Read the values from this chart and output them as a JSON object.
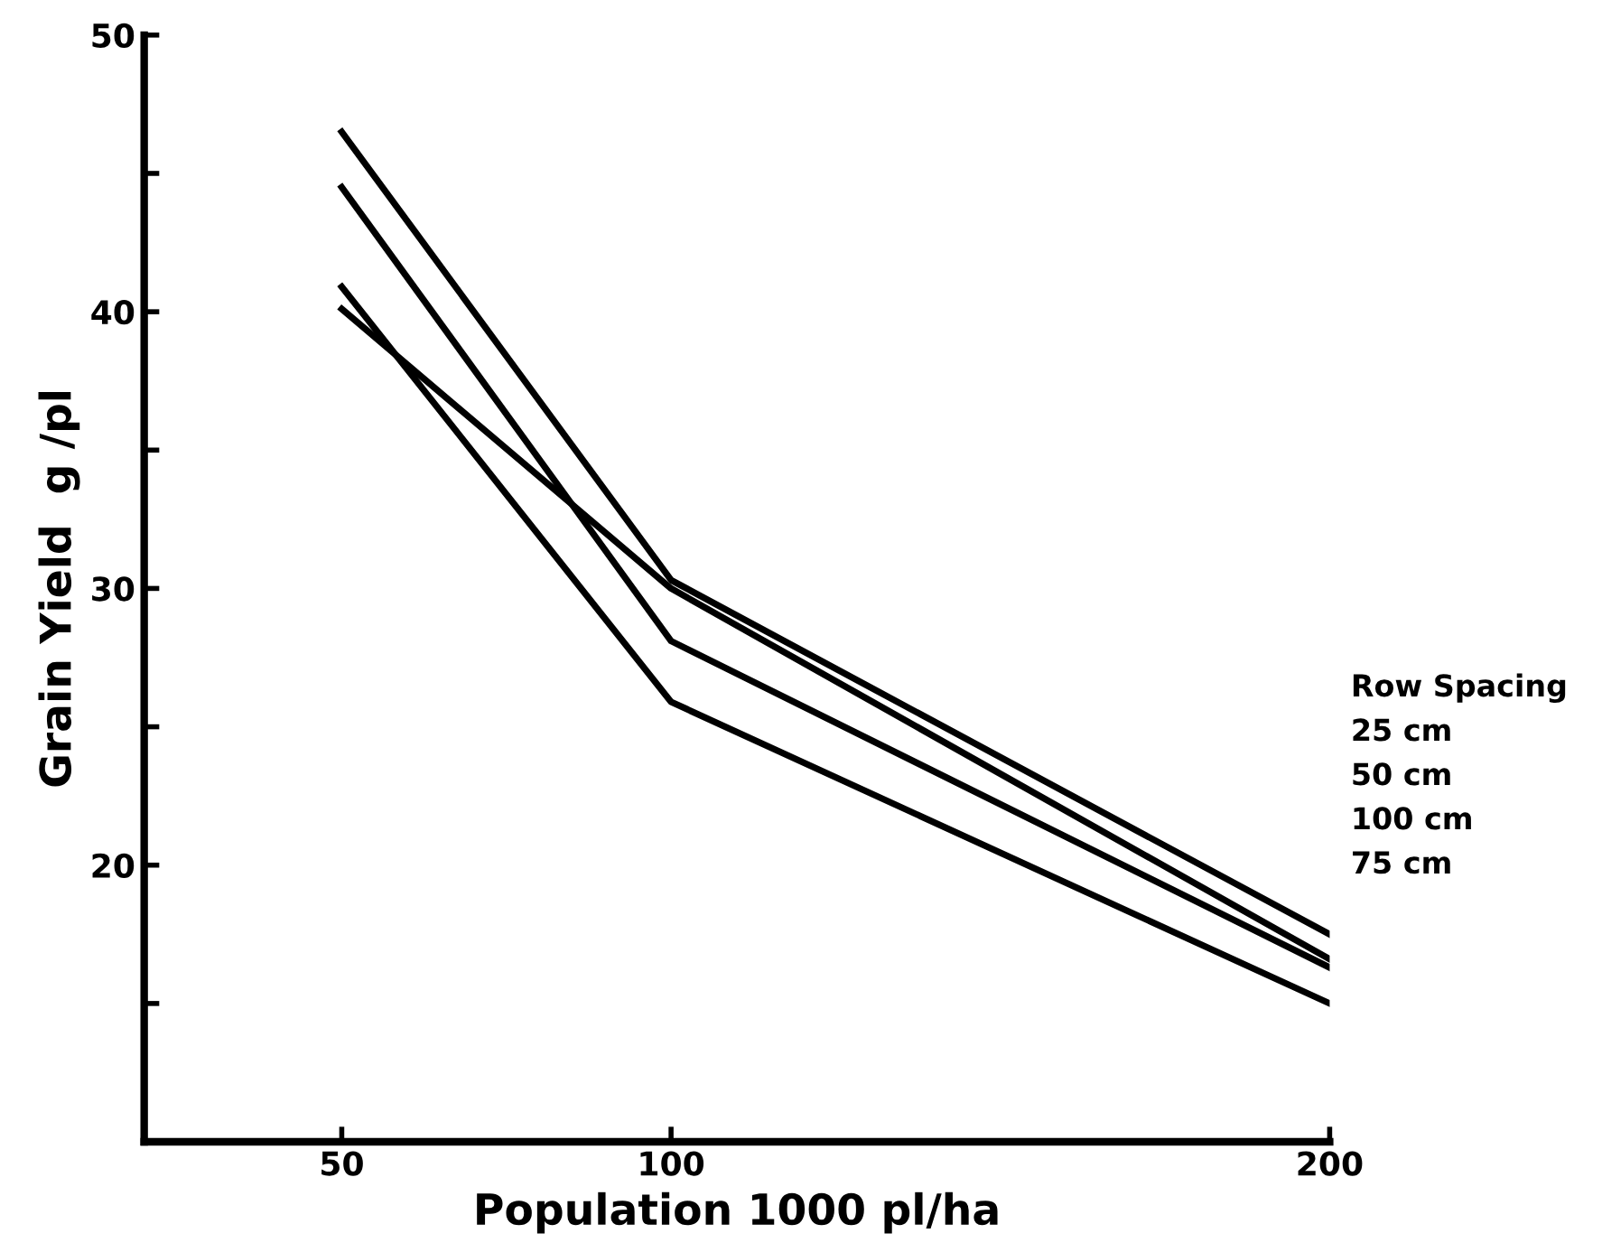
{
  "chart_data": {
    "type": "line",
    "xlabel": "Population 1000 pl/ha",
    "ylabel": "Grain Yield  g /pl",
    "legend_title": "Row Spacing",
    "legend": "right",
    "x": [
      50,
      100,
      200
    ],
    "series": [
      {
        "name": "25 cm",
        "color": "#000000",
        "values": [
          46.5,
          30.3,
          17.5
        ]
      },
      {
        "name": "50 cm",
        "color": "#000000",
        "values": [
          40.1,
          30.0,
          16.6
        ]
      },
      {
        "name": "100 cm",
        "color": "#000000",
        "values": [
          44.5,
          28.1,
          16.3
        ]
      },
      {
        "name": "75 cm",
        "color": "#000000",
        "values": [
          40.9,
          25.9,
          15.0
        ]
      }
    ],
    "xlim": [
      20,
      200
    ],
    "xticks": [
      50,
      100,
      200
    ],
    "ylim": [
      10,
      50
    ],
    "yticks": [
      {
        "value": 15,
        "label": null
      },
      20,
      {
        "value": 25,
        "label": null
      },
      30,
      {
        "value": 35,
        "label": null
      },
      40,
      {
        "value": 45,
        "label": null
      },
      50
    ],
    "marker": "none",
    "line_style": "solid",
    "grid": false
  }
}
